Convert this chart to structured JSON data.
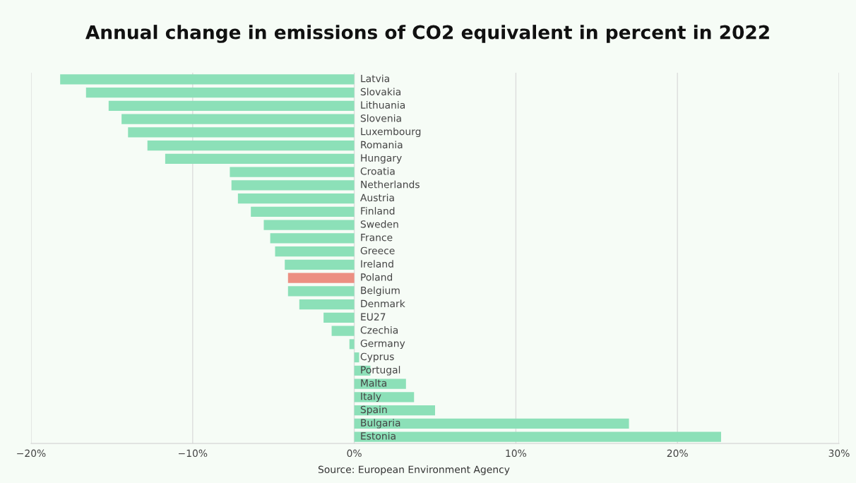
{
  "chart_data": {
    "type": "bar",
    "orientation": "horizontal",
    "title": "Annual change in emissions of CO2 equivalent in percent in 2022",
    "categories": [
      "Latvia",
      "Slovakia",
      "Lithuania",
      "Slovenia",
      "Luxembourg",
      "Romania",
      "Hungary",
      "Croatia",
      "Netherlands",
      "Austria",
      "Finland",
      "Sweden",
      "France",
      "Greece",
      "Ireland",
      "Poland",
      "Belgium",
      "Denmark",
      "EU27",
      "Czechia",
      "Germany",
      "Cyprus",
      "Portugal",
      "Malta",
      "Italy",
      "Spain",
      "Bulgaria",
      "Estonia"
    ],
    "values": [
      -18.2,
      -16.6,
      -15.2,
      -14.4,
      -14.0,
      -12.8,
      -11.7,
      -7.7,
      -7.6,
      -7.2,
      -6.4,
      -5.6,
      -5.2,
      -4.9,
      -4.3,
      -4.1,
      -4.1,
      -3.4,
      -1.9,
      -1.4,
      -0.3,
      0.3,
      1.0,
      3.2,
      3.7,
      5.0,
      17.0,
      22.7
    ],
    "colors": [
      "#8ce0b8",
      "#8ce0b8",
      "#8ce0b8",
      "#8ce0b8",
      "#8ce0b8",
      "#8ce0b8",
      "#8ce0b8",
      "#8ce0b8",
      "#8ce0b8",
      "#8ce0b8",
      "#8ce0b8",
      "#8ce0b8",
      "#8ce0b8",
      "#8ce0b8",
      "#8ce0b8",
      "#ec8f82",
      "#8ce0b8",
      "#8ce0b8",
      "#8ce0b8",
      "#8ce0b8",
      "#8ce0b8",
      "#8ce0b8",
      "#8ce0b8",
      "#8ce0b8",
      "#8ce0b8",
      "#8ce0b8",
      "#8ce0b8",
      "#8ce0b8"
    ],
    "xlim": [
      -20,
      30
    ],
    "xticks": [
      {
        "value": -20,
        "label": "−20%"
      },
      {
        "value": -10,
        "label": "−10%"
      },
      {
        "value": 0,
        "label": "0%"
      },
      {
        "value": 10,
        "label": "10%"
      },
      {
        "value": 20,
        "label": "20%"
      },
      {
        "value": 30,
        "label": "30%"
      }
    ],
    "grid": "x",
    "annotations": [
      "Source: European Environment Agency"
    ]
  }
}
